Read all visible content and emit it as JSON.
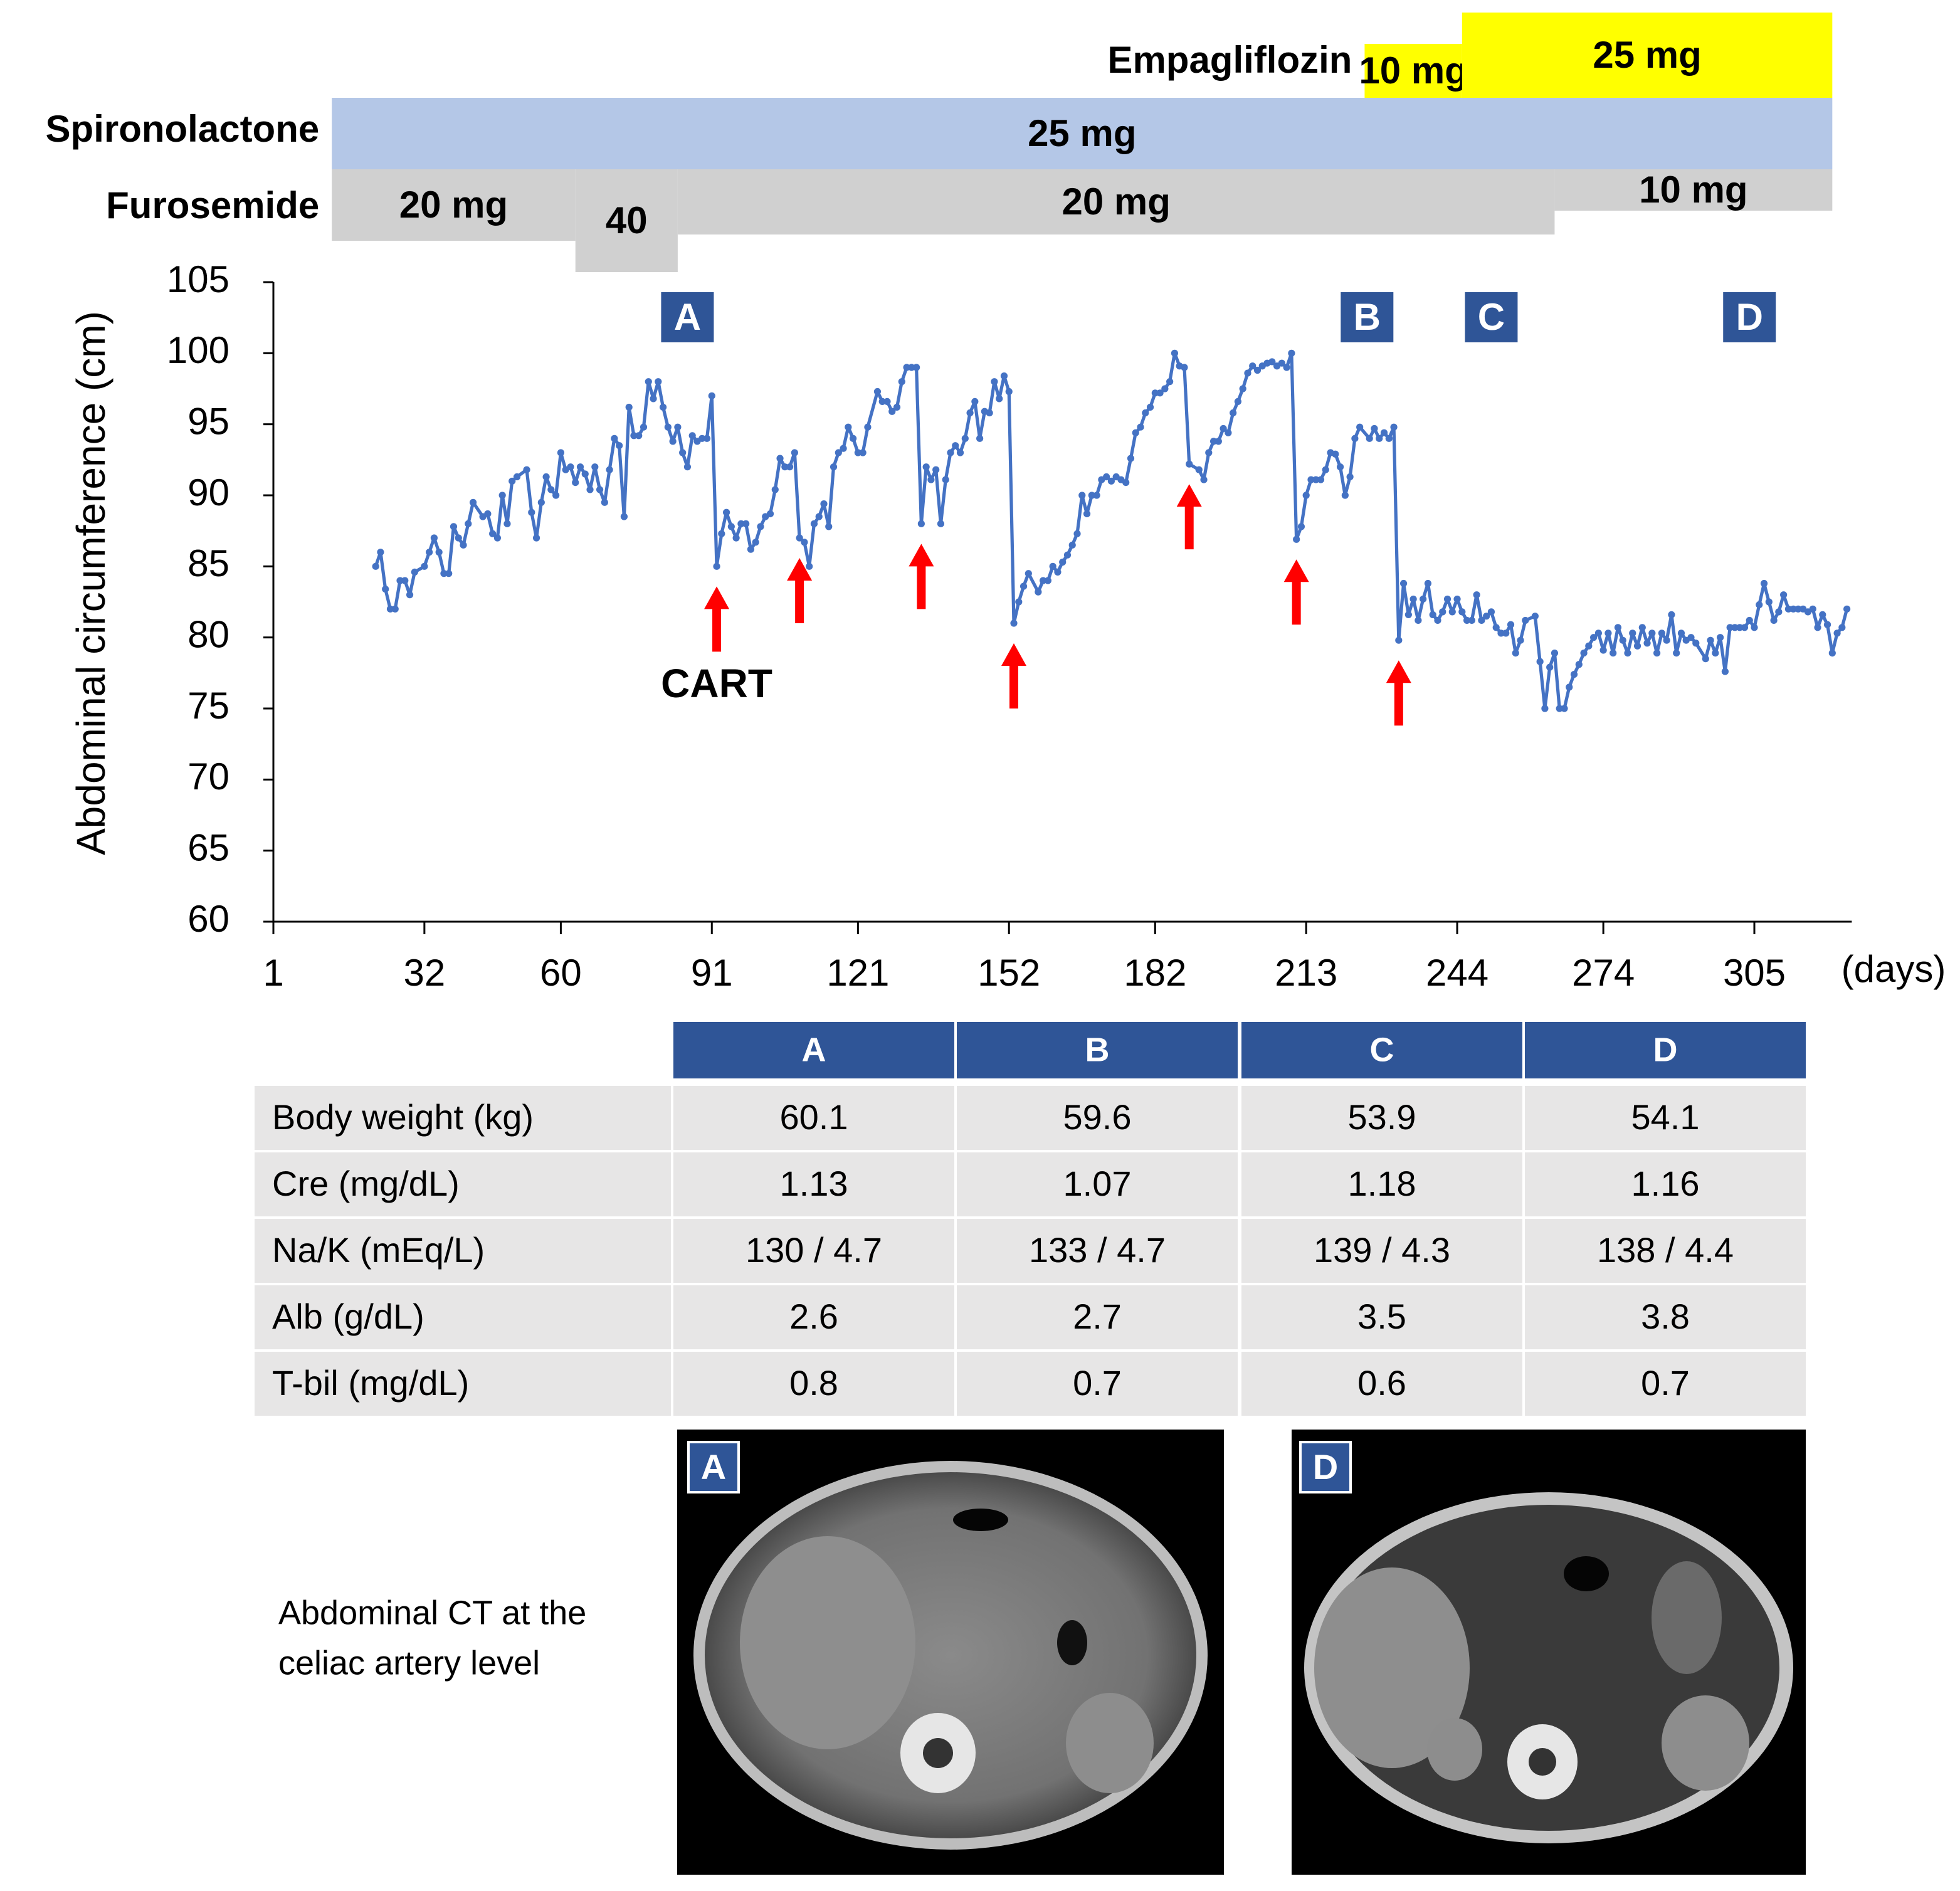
{
  "chart_data": {
    "type": "line",
    "ylabel": "Abdominal circumference (cm)",
    "xlabel": "(days)",
    "color": "#4472c4",
    "markers": true,
    "xlim": [
      1,
      325
    ],
    "ylim": [
      60,
      105
    ],
    "xticks": [
      1,
      32,
      60,
      91,
      121,
      152,
      182,
      213,
      244,
      274,
      305
    ],
    "yticks": [
      60,
      65,
      70,
      75,
      80,
      85,
      90,
      95,
      100,
      105
    ],
    "x": [
      22,
      23,
      24,
      25,
      26,
      27,
      28,
      29,
      30,
      32,
      33,
      34,
      35,
      36,
      37,
      38,
      39,
      40,
      41,
      42,
      44,
      45,
      46,
      47,
      48,
      49,
      50,
      51,
      53,
      54,
      55,
      56,
      57,
      58,
      59,
      60,
      61,
      62,
      63,
      64,
      65,
      66,
      67,
      68,
      69,
      70,
      71,
      72,
      73,
      74,
      75,
      76,
      77,
      78,
      79,
      80,
      81,
      82,
      83,
      84,
      85,
      86,
      87,
      88,
      89,
      90,
      91,
      92,
      93,
      94,
      95,
      96,
      97,
      98,
      99,
      100,
      101,
      102,
      103,
      104,
      105,
      106,
      107,
      108,
      109,
      110,
      111,
      112,
      113,
      114,
      115,
      116,
      117,
      118,
      119,
      120,
      121,
      122,
      123,
      125,
      126,
      127,
      128,
      129,
      130,
      131,
      132,
      133,
      134,
      135,
      136,
      137,
      138,
      139,
      140,
      141,
      142,
      143,
      144,
      145,
      146,
      147,
      148,
      149,
      150,
      151,
      152,
      153,
      154,
      155,
      156,
      158,
      159,
      160,
      161,
      162,
      163,
      164,
      165,
      166,
      167,
      168,
      169,
      170,
      171,
      172,
      173,
      174,
      175,
      176,
      177,
      178,
      179,
      180,
      181,
      182,
      183,
      184,
      185,
      186,
      187,
      188,
      189,
      191,
      192,
      193,
      194,
      195,
      196,
      197,
      198,
      199,
      200,
      201,
      202,
      203,
      204,
      205,
      206,
      207,
      208,
      209,
      210,
      211,
      212,
      213,
      214,
      215,
      216,
      217,
      218,
      219,
      220,
      221,
      222,
      223,
      224,
      226,
      227,
      228,
      229,
      230,
      231,
      232,
      233,
      234,
      235,
      236,
      237,
      238,
      239,
      240,
      241,
      242,
      243,
      244,
      245,
      246,
      247,
      248,
      249,
      250,
      251,
      252,
      253,
      254,
      255,
      256,
      257,
      258,
      260,
      261,
      262,
      263,
      264,
      265,
      266,
      267,
      268,
      269,
      270,
      271,
      272,
      273,
      274,
      275,
      276,
      277,
      278,
      279,
      280,
      281,
      282,
      283,
      284,
      285,
      286,
      287,
      288,
      289,
      290,
      291,
      292,
      293,
      295,
      296,
      297,
      298,
      299,
      300,
      301,
      302,
      303,
      304,
      305,
      306,
      307,
      308,
      309,
      310,
      311,
      312,
      313,
      314,
      315,
      316,
      317,
      318,
      319,
      320,
      321,
      322,
      323,
      324
    ],
    "values": [
      85,
      86,
      83.4,
      82,
      82,
      84,
      84,
      83,
      84.6,
      85,
      86,
      87,
      86,
      84.5,
      84.5,
      87.8,
      87,
      86.5,
      88,
      89.5,
      88.5,
      88.7,
      87.3,
      87,
      90,
      88,
      91,
      91.3,
      91.8,
      88.8,
      87,
      89.5,
      91.3,
      90.4,
      90,
      93,
      91.8,
      92,
      90.9,
      92,
      91.5,
      90.4,
      92,
      90.4,
      89.5,
      91.8,
      94,
      93.5,
      88.5,
      96.2,
      94.2,
      94.2,
      94.8,
      98,
      96.8,
      98,
      96.2,
      94.8,
      93.8,
      94.8,
      93,
      92,
      94.2,
      93.8,
      94,
      94,
      97,
      85,
      87.3,
      88.8,
      87.8,
      87,
      88,
      88,
      86.2,
      86.7,
      87.8,
      88.5,
      88.7,
      90.4,
      92.6,
      92,
      92,
      93,
      87,
      86.7,
      85,
      88,
      88.5,
      89.4,
      87.8,
      92,
      93,
      93.3,
      94.8,
      94,
      93,
      93,
      94.8,
      97.3,
      96.6,
      96.6,
      95.9,
      96.2,
      98,
      99,
      99,
      99,
      88,
      92,
      91.1,
      91.8,
      88,
      91.1,
      93,
      93.5,
      93,
      94,
      95.8,
      96.6,
      94,
      95.9,
      95.8,
      98,
      96.8,
      98.4,
      97.3,
      81,
      82.5,
      83.6,
      84.5,
      83.2,
      84,
      84,
      85,
      84.6,
      85.3,
      85.8,
      86.5,
      87.3,
      90,
      88.7,
      90,
      90,
      91.1,
      91.3,
      91,
      91.3,
      91.1,
      90.9,
      92.6,
      94.4,
      94.8,
      95.8,
      96.2,
      97.2,
      97.2,
      97.5,
      98,
      100,
      99.1,
      99,
      92.2,
      91.8,
      91.1,
      93,
      93.8,
      93.8,
      94.7,
      94.4,
      95.8,
      96.6,
      97.5,
      98.6,
      99.1,
      98.8,
      99.1,
      99.3,
      99.4,
      99.1,
      99.3,
      99,
      100,
      86.9,
      87.8,
      90,
      91.1,
      91.1,
      91.1,
      91.8,
      93,
      92.9,
      92,
      90,
      91.3,
      94,
      94.8,
      94,
      94.7,
      94,
      94.4,
      94,
      94.8,
      79.8,
      83.8,
      81.6,
      82.7,
      81.2,
      82.7,
      83.8,
      81.6,
      81.2,
      81.8,
      82.7,
      81.8,
      82.7,
      81.8,
      81.2,
      81.2,
      83,
      81.2,
      81.5,
      81.8,
      80.7,
      80.3,
      80.3,
      80.9,
      78.9,
      79.8,
      81.2,
      81.5,
      78.3,
      75,
      77.9,
      78.9,
      75,
      75,
      76.5,
      77.4,
      78.1,
      78.9,
      79.4,
      80,
      80.3,
      79.1,
      80.3,
      78.9,
      80.7,
      79.8,
      78.9,
      80.3,
      79.4,
      80.7,
      79.6,
      80.3,
      78.9,
      80.3,
      79.8,
      81.6,
      78.9,
      80.3,
      79.8,
      80,
      79.6,
      78.5,
      79.8,
      78.9,
      80,
      77.6,
      80.7,
      80.7,
      80.7,
      80.7,
      81.2,
      80.7,
      82.3,
      83.8,
      82.5,
      81.2,
      81.8,
      83,
      82,
      82,
      82,
      82,
      81.8,
      82,
      80.7,
      81.6,
      80.9,
      78.9,
      80.3,
      80.7,
      82
    ],
    "annotation": "CART",
    "cart_days": [
      92,
      109,
      134,
      153,
      189,
      211,
      232
    ],
    "stage_markers": [
      {
        "label": "A",
        "x": 86
      },
      {
        "label": "B",
        "x": 225.5
      },
      {
        "label": "C",
        "x": 251
      },
      {
        "label": "D",
        "x": 304
      }
    ]
  },
  "regimens": [
    {
      "drug": "Empagliflozin",
      "color": "#ffff00",
      "segments": [
        {
          "dose": "10 mg",
          "start": 225,
          "end": 245
        },
        {
          "dose": "25 mg",
          "start": 245,
          "end": 321
        }
      ]
    },
    {
      "drug": "Spironolactone",
      "color": "#b4c7e7",
      "segments": [
        {
          "dose": "25 mg",
          "start": 13,
          "end": 321
        }
      ]
    },
    {
      "drug": "Furosemide",
      "color": "#d0d0d0",
      "segments": [
        {
          "dose": "20 mg",
          "start": 13,
          "end": 63
        },
        {
          "dose": "40",
          "start": 63,
          "end": 84
        },
        {
          "dose": "20 mg",
          "start": 84,
          "end": 264
        },
        {
          "dose": "10 mg",
          "start": 264,
          "end": 321
        }
      ]
    }
  ],
  "table": {
    "columns": [
      "A",
      "B",
      "C",
      "D"
    ],
    "rows": [
      [
        "Body weight (kg)",
        60.1,
        59.6,
        53.9,
        54.1
      ],
      [
        "Cre (mg/dL)",
        1.13,
        1.07,
        1.18,
        1.16
      ],
      [
        "Na/K (mEq/L)",
        "130 / 4.7",
        "133 / 4.7",
        "139 / 4.3",
        "138 / 4.4"
      ],
      [
        "Alb (g/dL)",
        2.6,
        2.7,
        3.5,
        3.8
      ],
      [
        "T-bil (mg/dL)",
        0.8,
        0.7,
        0.6,
        0.7
      ]
    ]
  },
  "ct": {
    "caption": [
      "Abdominal CT at the",
      "celiac artery level"
    ],
    "images": [
      {
        "label": "A"
      },
      {
        "label": "D"
      }
    ]
  }
}
